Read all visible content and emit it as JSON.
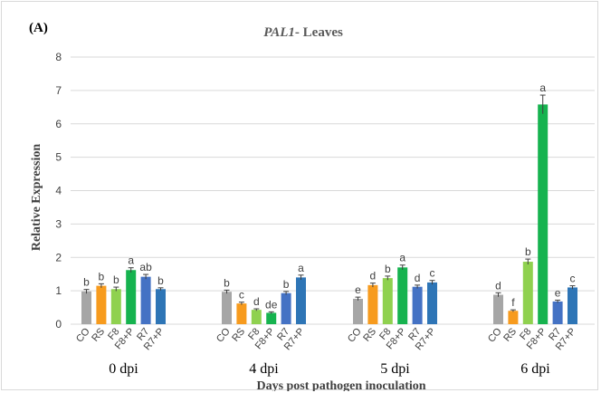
{
  "chart_data": {
    "type": "bar",
    "panel_label": "(A)",
    "title_gene": "PAL1",
    "title_rest": "- Leaves",
    "xlabel": "Days post pathogen inoculation",
    "ylabel": "Relative Expression",
    "ylim": [
      0,
      8
    ],
    "yticks": [
      "0",
      "1",
      "2",
      "3",
      "4",
      "5",
      "6",
      "7",
      "8"
    ],
    "grid": true,
    "treatments": [
      "CO",
      "RS",
      "F8",
      "F8+P",
      "R7",
      "R7+P"
    ],
    "colors": {
      "CO": "#a6a6a6",
      "RS": "#f79b1e",
      "F8": "#8fd14f",
      "F8+P": "#16b34f",
      "R7": "#4472c4",
      "R7+P": "#2e75b6"
    },
    "groups": [
      {
        "label": "0 dpi",
        "values": [
          0.98,
          1.15,
          1.05,
          1.62,
          1.42,
          1.05
        ],
        "errors": [
          0.06,
          0.06,
          0.06,
          0.07,
          0.07,
          0.04
        ],
        "letters": [
          "b",
          "b",
          "b",
          "a",
          "ab",
          "b"
        ]
      },
      {
        "label": "4 dpi",
        "values": [
          0.97,
          0.62,
          0.43,
          0.34,
          0.93,
          1.4
        ],
        "errors": [
          0.05,
          0.04,
          0.03,
          0.03,
          0.05,
          0.07
        ],
        "letters": [
          "b",
          "c",
          "d",
          "de",
          "b",
          "a"
        ]
      },
      {
        "label": "5 dpi",
        "values": [
          0.76,
          1.17,
          1.38,
          1.7,
          1.12,
          1.25
        ],
        "errors": [
          0.05,
          0.06,
          0.06,
          0.07,
          0.05,
          0.06
        ],
        "letters": [
          "e",
          "d",
          "b",
          "a",
          "d",
          "c"
        ]
      },
      {
        "label": "6 dpi",
        "values": [
          0.88,
          0.4,
          1.87,
          6.58,
          0.68,
          1.1
        ],
        "errors": [
          0.06,
          0.03,
          0.08,
          0.28,
          0.04,
          0.05
        ],
        "letters": [
          "d",
          "f",
          "b",
          "a",
          "e",
          "c"
        ]
      }
    ]
  }
}
